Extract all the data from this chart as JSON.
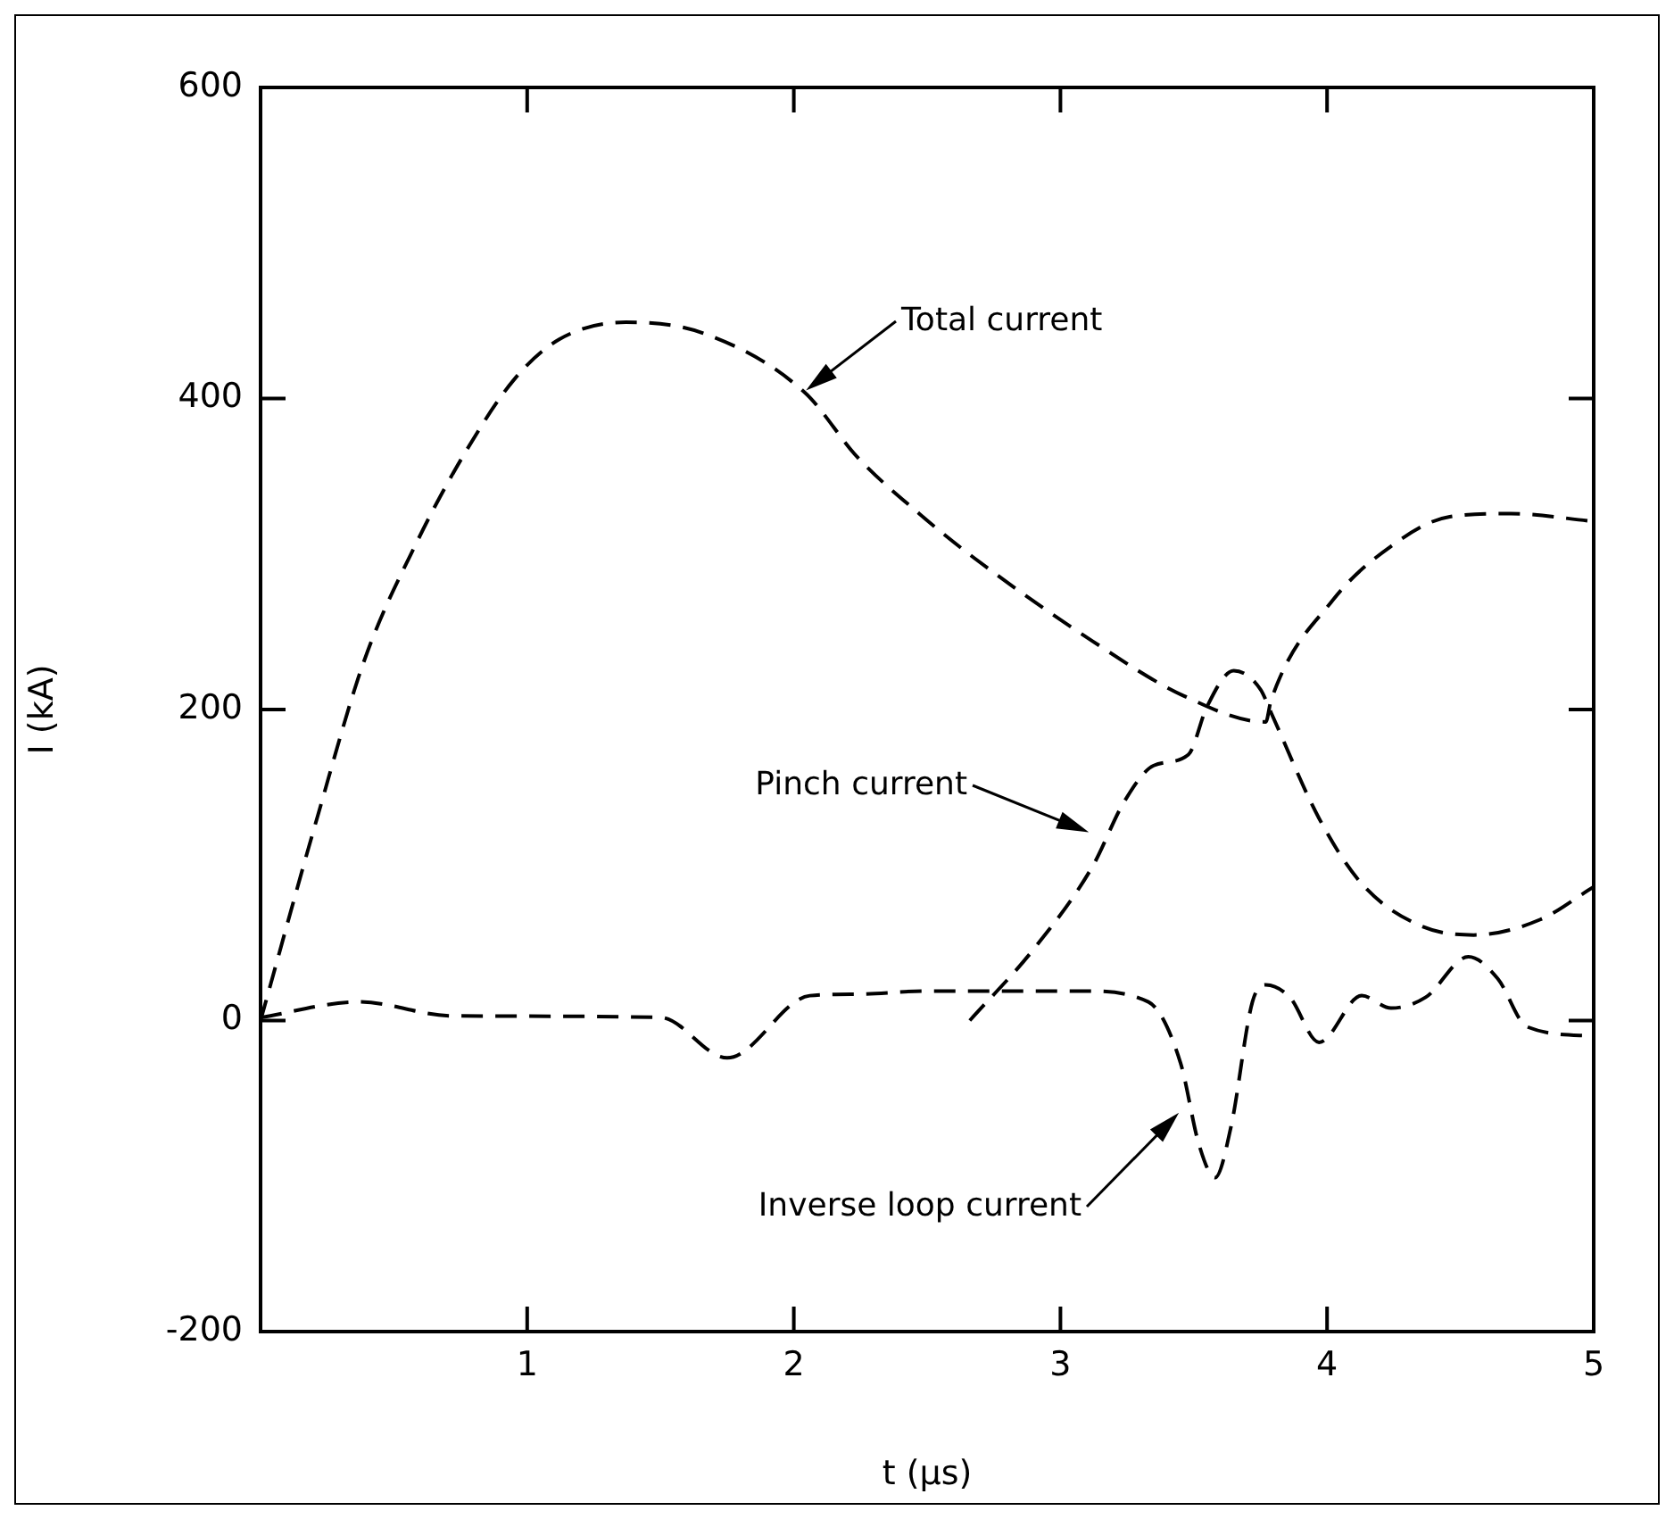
{
  "chart_data": {
    "type": "line",
    "xlabel": "t (µs)",
    "ylabel": "I (kA)",
    "xlim": [
      0,
      5
    ],
    "xticks": [
      1,
      2,
      3,
      4,
      5
    ],
    "ylim": [
      -200,
      600
    ],
    "yticks": [
      -200,
      0,
      200,
      400,
      600
    ],
    "grid": false,
    "legend": false,
    "marker": "none",
    "line_style": "dashed",
    "series": [
      {
        "color": "#000000",
        "x": [
          0,
          0.21,
          0.39,
          0.59,
          0.77,
          0.95,
          1.12,
          1.37,
          1.66,
          2.04,
          2.24,
          2.47,
          2.68,
          3.12,
          3.46,
          3.77,
          3.79,
          4.02,
          4.24,
          4.46,
          4.69,
          5.0
        ],
        "values": [
          0,
          129,
          232,
          309,
          366,
          412,
          438,
          449,
          442,
          404,
          362,
          326,
          297,
          244,
          209,
          192,
          206,
          270,
          305,
          324,
          326,
          321
        ]
      },
      {
        "color": "#000000",
        "x": [
          2.66,
          2.9,
          3.12,
          3.24,
          3.35,
          3.48,
          3.55,
          3.65,
          3.75,
          3.79,
          3.97,
          4.13,
          4.35,
          4.55,
          4.8,
          5.0
        ],
        "values": [
          0,
          46,
          99,
          141,
          164,
          171,
          202,
          225,
          213,
          198,
          130,
          88,
          61,
          55,
          65,
          86
        ]
      },
      {
        "color": "#000000",
        "x": [
          0,
          0.37,
          0.72,
          1.5,
          1.75,
          2.06,
          2.24,
          2.5,
          3.08,
          3.33,
          3.45,
          3.52,
          3.58,
          3.64,
          3.72,
          3.77,
          3.86,
          3.97,
          4.13,
          4.24,
          4.37,
          4.53,
          4.64,
          4.75,
          5.0
        ],
        "values": [
          2,
          12,
          3,
          2,
          -24,
          16,
          17,
          19,
          19,
          12,
          -27,
          -80,
          -101,
          -68,
          12,
          23,
          15,
          -14,
          16,
          8,
          15,
          41,
          27,
          -4,
          -10
        ]
      }
    ],
    "annotations": [
      "Total current",
      "Pinch current",
      "Inverse loop current"
    ]
  }
}
